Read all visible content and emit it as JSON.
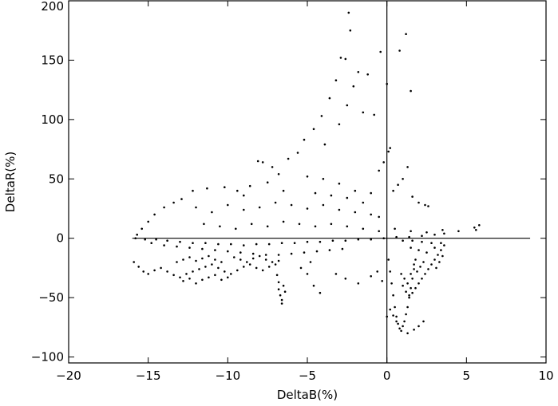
{
  "chart_data": {
    "type": "scatter",
    "title": "",
    "xlabel": "DeltaB(%)",
    "ylabel": "DeltaR(%)",
    "xlim": [
      -20,
      10
    ],
    "ylim": [
      -105,
      200
    ],
    "xticks": [
      -20,
      -15,
      -10,
      -5,
      0,
      5,
      10
    ],
    "xtick_labels": [
      "−20",
      "−15",
      "−10",
      "−5",
      "0",
      "5",
      "10"
    ],
    "yticks": [
      -100,
      -50,
      0,
      50,
      100,
      150,
      200
    ],
    "ytick_labels": [
      "−100",
      "−50",
      "0",
      "50",
      "100",
      "150",
      "200"
    ],
    "reference_lines": {
      "horizontal_y": 0,
      "horizontal_x_range": [
        -16,
        9
      ],
      "vertical_x": 0
    },
    "grid": false,
    "legend": "none",
    "marker_color": "#000000",
    "points": [
      [
        -2.4,
        190
      ],
      [
        -2.3,
        175
      ],
      [
        1.2,
        172
      ],
      [
        0.8,
        158
      ],
      [
        -0.4,
        157
      ],
      [
        -2.9,
        152
      ],
      [
        -2.6,
        151
      ],
      [
        0.0,
        130
      ],
      [
        1.5,
        124
      ],
      [
        -1.8,
        140
      ],
      [
        -1.2,
        138
      ],
      [
        -3.2,
        133
      ],
      [
        -2.1,
        128
      ],
      [
        -3.6,
        118
      ],
      [
        -2.5,
        112
      ],
      [
        -1.5,
        106
      ],
      [
        -0.8,
        104
      ],
      [
        -4.1,
        103
      ],
      [
        -3.0,
        96
      ],
      [
        -4.6,
        92
      ],
      [
        -5.2,
        83
      ],
      [
        -3.9,
        79
      ],
      [
        -5.6,
        72
      ],
      [
        -6.2,
        67
      ],
      [
        -7.2,
        60
      ],
      [
        -8.1,
        65
      ],
      [
        -7.8,
        64
      ],
      [
        -6.8,
        54
      ],
      [
        -7.5,
        47
      ],
      [
        -8.6,
        44
      ],
      [
        -9.4,
        40
      ],
      [
        -10.2,
        43
      ],
      [
        -11.3,
        42
      ],
      [
        -12.2,
        40
      ],
      [
        -9.0,
        36
      ],
      [
        -5.0,
        52
      ],
      [
        -4.0,
        50
      ],
      [
        -3.0,
        46
      ],
      [
        -2.0,
        40
      ],
      [
        -1.0,
        38
      ],
      [
        -0.5,
        57
      ],
      [
        -0.2,
        64
      ],
      [
        0.2,
        76
      ],
      [
        0.1,
        73
      ],
      [
        1.3,
        60
      ],
      [
        1.0,
        50
      ],
      [
        0.7,
        45
      ],
      [
        0.4,
        40
      ],
      [
        1.6,
        35
      ],
      [
        2.0,
        30
      ],
      [
        2.4,
        28
      ],
      [
        2.6,
        27
      ],
      [
        -12.9,
        33
      ],
      [
        -13.4,
        30
      ],
      [
        -14.0,
        26
      ],
      [
        -14.6,
        20
      ],
      [
        -15.0,
        14
      ],
      [
        -15.4,
        8
      ],
      [
        -15.7,
        3
      ],
      [
        -12.0,
        26
      ],
      [
        -11.0,
        22
      ],
      [
        -10.0,
        28
      ],
      [
        -9.0,
        24
      ],
      [
        -8.0,
        26
      ],
      [
        -7.0,
        30
      ],
      [
        -6.0,
        28
      ],
      [
        -5.0,
        25
      ],
      [
        -4.0,
        28
      ],
      [
        -3.0,
        24
      ],
      [
        -2.0,
        22
      ],
      [
        -1.0,
        20
      ],
      [
        -0.5,
        18
      ],
      [
        -3.5,
        36
      ],
      [
        -2.5,
        34
      ],
      [
        -1.5,
        30
      ],
      [
        -4.5,
        38
      ],
      [
        -6.5,
        40
      ],
      [
        -11.5,
        12
      ],
      [
        -10.5,
        10
      ],
      [
        -9.5,
        8
      ],
      [
        -8.5,
        12
      ],
      [
        -7.5,
        10
      ],
      [
        -6.5,
        14
      ],
      [
        -5.5,
        12
      ],
      [
        -4.5,
        10
      ],
      [
        -3.5,
        12
      ],
      [
        -2.5,
        10
      ],
      [
        -1.5,
        8
      ],
      [
        -0.5,
        6
      ],
      [
        0.5,
        8
      ],
      [
        1.5,
        6
      ],
      [
        2.5,
        5
      ],
      [
        3.5,
        7
      ],
      [
        4.5,
        6
      ],
      [
        5.5,
        9
      ],
      [
        5.8,
        11
      ],
      [
        5.6,
        7
      ],
      [
        -15.8,
        0
      ],
      [
        -15.2,
        -1
      ],
      [
        -14.5,
        -1
      ],
      [
        -13.8,
        -2
      ],
      [
        -13.0,
        -3
      ],
      [
        -12.2,
        -4
      ],
      [
        -11.4,
        -4
      ],
      [
        -10.6,
        -5
      ],
      [
        -9.8,
        -5
      ],
      [
        -9.0,
        -6
      ],
      [
        -8.2,
        -5
      ],
      [
        -7.4,
        -5
      ],
      [
        -6.6,
        -4
      ],
      [
        -5.8,
        -4
      ],
      [
        -5.0,
        -3
      ],
      [
        -4.2,
        -3
      ],
      [
        -3.4,
        -2
      ],
      [
        -2.6,
        -2
      ],
      [
        -1.8,
        -1
      ],
      [
        -1.0,
        -1
      ],
      [
        -0.2,
        0
      ],
      [
        0.6,
        1
      ],
      [
        1.4,
        1
      ],
      [
        2.2,
        2
      ],
      [
        3.0,
        3
      ],
      [
        3.6,
        4
      ],
      [
        -14.8,
        -4
      ],
      [
        -14.0,
        -6
      ],
      [
        -13.2,
        -7
      ],
      [
        -12.4,
        -8
      ],
      [
        -11.6,
        -9
      ],
      [
        -10.8,
        -10
      ],
      [
        -10.0,
        -11
      ],
      [
        -9.2,
        -12
      ],
      [
        -8.4,
        -13
      ],
      [
        -7.6,
        -14
      ],
      [
        -6.8,
        -14
      ],
      [
        -6.0,
        -13
      ],
      [
        -5.2,
        -12
      ],
      [
        -4.4,
        -11
      ],
      [
        -3.6,
        -10
      ],
      [
        -2.8,
        -9
      ],
      [
        -15.9,
        -20
      ],
      [
        -15.6,
        -24
      ],
      [
        -15.3,
        -28
      ],
      [
        -15.0,
        -30
      ],
      [
        -14.6,
        -27
      ],
      [
        -14.2,
        -25
      ],
      [
        -13.8,
        -28
      ],
      [
        -13.4,
        -31
      ],
      [
        -13.0,
        -33
      ],
      [
        -12.6,
        -30
      ],
      [
        -12.2,
        -28
      ],
      [
        -11.8,
        -26
      ],
      [
        -11.4,
        -24
      ],
      [
        -11.0,
        -22
      ],
      [
        -10.6,
        -25
      ],
      [
        -10.2,
        -28
      ],
      [
        -9.8,
        -30
      ],
      [
        -9.4,
        -27
      ],
      [
        -9.0,
        -24
      ],
      [
        -8.6,
        -22
      ],
      [
        -8.2,
        -25
      ],
      [
        -7.8,
        -27
      ],
      [
        -7.4,
        -24
      ],
      [
        -7.0,
        -22
      ],
      [
        -12.8,
        -36
      ],
      [
        -12.4,
        -34
      ],
      [
        -12.0,
        -38
      ],
      [
        -11.6,
        -35
      ],
      [
        -11.2,
        -33
      ],
      [
        -10.8,
        -31
      ],
      [
        -10.4,
        -35
      ],
      [
        -10.0,
        -33
      ],
      [
        -13.2,
        -20
      ],
      [
        -12.8,
        -18
      ],
      [
        -12.4,
        -16
      ],
      [
        -12.0,
        -19
      ],
      [
        -11.6,
        -17
      ],
      [
        -11.2,
        -15
      ],
      [
        -10.8,
        -18
      ],
      [
        -10.4,
        -20
      ],
      [
        -9.6,
        -16
      ],
      [
        -9.2,
        -18
      ],
      [
        -8.8,
        -20
      ],
      [
        -8.4,
        -17
      ],
      [
        -8.0,
        -15
      ],
      [
        -7.6,
        -18
      ],
      [
        -7.2,
        -20
      ],
      [
        -6.8,
        -19
      ],
      [
        -6.9,
        -31
      ],
      [
        -6.8,
        -37
      ],
      [
        -6.8,
        -43
      ],
      [
        -6.7,
        -48
      ],
      [
        -6.6,
        -52
      ],
      [
        -6.6,
        -55
      ],
      [
        -6.5,
        -40
      ],
      [
        -6.4,
        -45
      ],
      [
        -5.0,
        -30
      ],
      [
        -4.6,
        -40
      ],
      [
        -4.2,
        -46
      ],
      [
        -5.4,
        -25
      ],
      [
        -4.8,
        -20
      ],
      [
        -3.2,
        -30
      ],
      [
        -2.6,
        -34
      ],
      [
        -1.8,
        -38
      ],
      [
        -1.0,
        -32
      ],
      [
        -0.6,
        -28
      ],
      [
        -0.3,
        -36
      ],
      [
        0.1,
        -18
      ],
      [
        0.2,
        -28
      ],
      [
        0.3,
        -38
      ],
      [
        0.4,
        -48
      ],
      [
        0.5,
        -58
      ],
      [
        0.6,
        -66
      ],
      [
        0.7,
        -72
      ],
      [
        0.8,
        -76
      ],
      [
        0.9,
        -78
      ],
      [
        1.0,
        -74
      ],
      [
        1.1,
        -70
      ],
      [
        1.2,
        -64
      ],
      [
        1.3,
        -58
      ],
      [
        1.4,
        -50
      ],
      [
        1.5,
        -42
      ],
      [
        1.6,
        -34
      ],
      [
        1.7,
        -26
      ],
      [
        1.8,
        -18
      ],
      [
        1.0,
        -40
      ],
      [
        1.2,
        -45
      ],
      [
        1.4,
        -48
      ],
      [
        1.6,
        -46
      ],
      [
        1.8,
        -42
      ],
      [
        2.0,
        -38
      ],
      [
        2.2,
        -34
      ],
      [
        2.4,
        -30
      ],
      [
        2.6,
        -26
      ],
      [
        2.8,
        -22
      ],
      [
        3.0,
        -18
      ],
      [
        3.2,
        -14
      ],
      [
        3.4,
        -10
      ],
      [
        3.6,
        -6
      ],
      [
        3.5,
        -15
      ],
      [
        3.3,
        -20
      ],
      [
        3.1,
        -25
      ],
      [
        0.9,
        -30
      ],
      [
        1.1,
        -34
      ],
      [
        1.3,
        -38
      ],
      [
        1.5,
        -30
      ],
      [
        1.7,
        -22
      ],
      [
        1.9,
        -28
      ],
      [
        2.1,
        -24
      ],
      [
        2.3,
        -20
      ],
      [
        0.2,
        -60
      ],
      [
        0.4,
        -65
      ],
      [
        0.6,
        -70
      ],
      [
        1.3,
        -80
      ],
      [
        1.7,
        -77
      ],
      [
        2.0,
        -74
      ],
      [
        2.3,
        -70
      ],
      [
        0.0,
        -66
      ],
      [
        1.5,
        -8
      ],
      [
        2.0,
        -10
      ],
      [
        2.5,
        -12
      ],
      [
        3.0,
        -8
      ],
      [
        3.4,
        -4
      ],
      [
        2.8,
        -4
      ],
      [
        2.2,
        -3
      ],
      [
        1.6,
        -2
      ],
      [
        1.0,
        -2
      ]
    ]
  }
}
